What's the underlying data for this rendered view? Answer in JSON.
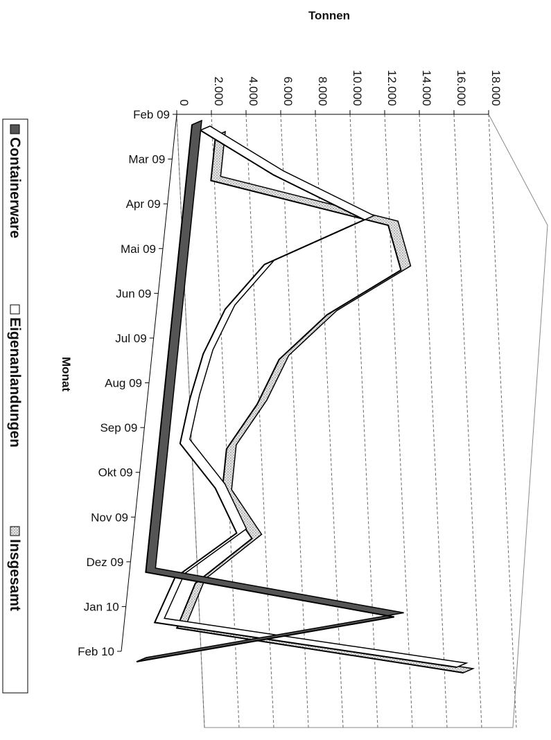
{
  "chart_data": {
    "type": "line",
    "x_label": "Tonnen",
    "y_label": "Monat",
    "categories": [
      "Feb 09",
      "Mar 09",
      "Apr 09",
      "Mai 09",
      "Jun 09",
      "Jul 09",
      "Aug 09",
      "Sep 09",
      "Okt 09",
      "Nov 09",
      "Dez 09",
      "Jan 10",
      "Feb 10"
    ],
    "series": [
      {
        "name": "Containerware",
        "color": "#555555",
        "values": [
          400,
          400,
          400,
          400,
          400,
          400,
          400,
          400,
          400,
          400,
          400,
          15000,
          400
        ]
      },
      {
        "name": "Eigenanlandungen",
        "color": "#ffffff",
        "values": [
          0,
          4500,
          10000,
          4500,
          2500,
          1500,
          1000,
          700,
          3000,
          4500,
          1200,
          300,
          18000
        ]
      },
      {
        "name": "Insgesamt",
        "color": "#c8c8c8",
        "values": [
          0,
          0,
          10500,
          11500,
          7500,
          5000,
          4000,
          2500,
          2500,
          4500,
          1500,
          700,
          17500
        ]
      }
    ],
    "xlim": [
      0,
      18000
    ],
    "xticks": [
      0,
      {
        "value": 2000,
        "label": "2.000"
      },
      {
        "value": 4000,
        "label": "4.000"
      },
      {
        "value": 6000,
        "label": "6.000"
      },
      {
        "value": 8000,
        "label": "8.000"
      },
      {
        "value": 10000,
        "label": "10.000"
      },
      {
        "value": 12000,
        "label": "12.000"
      },
      {
        "value": 14000,
        "label": "14.000"
      },
      {
        "value": 16000,
        "label": "16.000"
      },
      {
        "value": 18000,
        "label": "18.000"
      }
    ],
    "grid": true,
    "legend": "left"
  }
}
